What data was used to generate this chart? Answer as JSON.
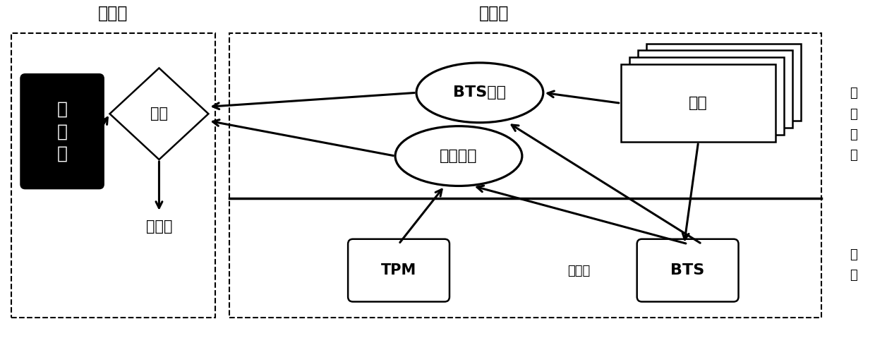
{
  "fig_width": 12.4,
  "fig_height": 4.86,
  "bg_color": "#ffffff",
  "title_verifier": "验证方",
  "title_prover": "证明方",
  "label_os": "操\n作\n系\n统",
  "label_hw": "硬\n件",
  "label_jizhunji": "基\n准\n值",
  "label_panding": "判定",
  "label_wanzheng": "完整？",
  "label_bts_record": "BTS记录",
  "label_record_fingerprint": "记录指纹",
  "label_process": "进程",
  "label_tpm": "TPM",
  "label_processor": "处理器",
  "label_bts": "BTS",
  "font_size_title": 17,
  "font_size_label": 15,
  "font_size_small": 13,
  "font_size_side": 13
}
